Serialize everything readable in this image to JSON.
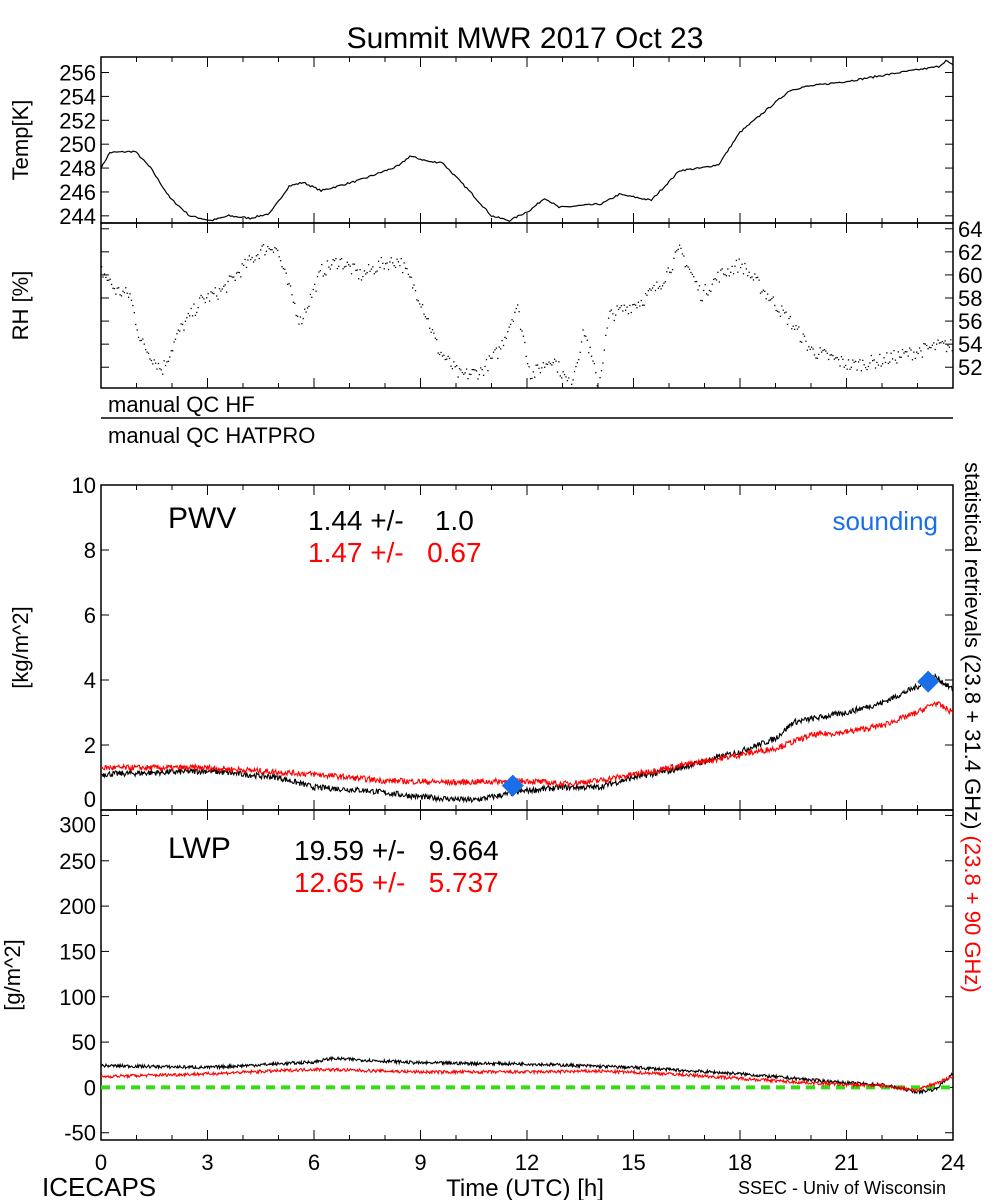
{
  "title": "Summit MWR 2017 Oct 23",
  "footer": {
    "left": "ICECAPS",
    "center": "Time (UTC) [h]",
    "right": "SSEC - Univ of Wisconsin"
  },
  "qc": {
    "hf": "manual QC HF",
    "hatpro": "manual QC HATPRO"
  },
  "right_label": {
    "black": "statistical retrievals (23.8 + 31.4 GHz)",
    "red": "(23.8 + 90 GHz)"
  },
  "colors": {
    "series_black": "#000000",
    "series_red": "#ff0000",
    "sounding": "#1a6fe8",
    "zero_line": "#33dd11"
  },
  "chart_data": [
    {
      "type": "line",
      "ylabel": "Temp[K]",
      "ylim": [
        243.4,
        257.3
      ],
      "xlim": [
        0,
        24
      ],
      "yticks": [
        244,
        246,
        248,
        250,
        252,
        254,
        256
      ],
      "yaxis_side": "left",
      "series": [
        {
          "color": "#000000",
          "x": [
            0,
            0.25,
            0.96,
            1.4,
            1.94,
            2.5,
            3.1,
            3.6,
            4.2,
            4.76,
            5.3,
            5.7,
            6.2,
            7.3,
            8.4,
            8.7,
            9.3,
            9.6,
            10.4,
            11,
            11.5,
            12.1,
            12.5,
            12.9,
            14.1,
            14.6,
            15.5,
            16.3,
            16.9,
            17.4,
            18,
            18.6,
            19.4,
            19.8,
            21.1,
            22.5,
            23.6,
            23.8,
            24
          ],
          "y": [
            248,
            249.3,
            249.4,
            248,
            245.5,
            244,
            243.6,
            244,
            243.8,
            244.2,
            246.5,
            246.8,
            246.1,
            247,
            248.2,
            249,
            248.5,
            248.5,
            246,
            244,
            243.6,
            244.5,
            245.5,
            244.7,
            245,
            245.8,
            245.3,
            247.8,
            248,
            248.3,
            251,
            252.5,
            254.5,
            254.8,
            255.3,
            256,
            256.5,
            257,
            256.6
          ]
        }
      ]
    },
    {
      "type": "scatter",
      "ylabel": "RH [%]",
      "ylim": [
        50.2,
        64.5
      ],
      "xlim": [
        0,
        24
      ],
      "yticks": [
        52,
        54,
        56,
        58,
        60,
        62,
        64
      ],
      "yaxis_side": "right",
      "series": [
        {
          "color": "#000000",
          "x": [
            0,
            0.4,
            0.8,
            1.1,
            1.7,
            2.2,
            2.8,
            3.4,
            3.9,
            4.5,
            4.9,
            5.3,
            5.6,
            6.2,
            6.7,
            7.3,
            7.9,
            8.4,
            9,
            9.5,
            10.1,
            10.7,
            11.2,
            11.7,
            12.1,
            12.7,
            13.2,
            13.6,
            14,
            14.3,
            15.2,
            15.7,
            16.3,
            16.9,
            17.4,
            18,
            18.9,
            19.4,
            20,
            21.1,
            21.9,
            23.1,
            23.6
          ],
          "y": [
            60.4,
            58.7,
            58.3,
            54.3,
            51.8,
            55.2,
            57.8,
            58.7,
            60.4,
            62.2,
            62.6,
            58.7,
            56,
            60.4,
            61.3,
            60,
            61,
            61.3,
            57.8,
            53.5,
            51.3,
            51.7,
            53.5,
            57.4,
            51.3,
            52.9,
            50.4,
            55.2,
            50.4,
            56.5,
            57.8,
            59.1,
            62.2,
            58.3,
            60,
            61,
            57.8,
            56,
            53.5,
            52.2,
            52.6,
            53.5,
            53.9
          ]
        }
      ]
    },
    {
      "type": "line",
      "ylabel": "[kg/m^2]",
      "ylim": [
        0,
        10
      ],
      "xlim": [
        0,
        24
      ],
      "yticks": [
        0,
        2,
        4,
        6,
        8,
        10
      ],
      "yaxis_side": "left",
      "annotations": {
        "label": "PWV",
        "black_stat": "1.44 +/-    1.0",
        "red_stat": "1.47 +/-   0.67",
        "sounding_label": "sounding"
      },
      "series": [
        {
          "color": "#000000",
          "x": [
            0,
            3,
            5,
            6,
            7.5,
            9,
            10.5,
            12,
            13,
            14,
            15,
            16,
            17,
            18,
            19,
            19.5,
            20,
            21,
            22,
            23,
            23.5,
            24
          ],
          "y": [
            1.1,
            1.2,
            1.0,
            0.7,
            0.6,
            0.4,
            0.3,
            0.6,
            0.7,
            0.7,
            1.0,
            1.2,
            1.5,
            1.8,
            2.2,
            2.7,
            2.8,
            3.0,
            3.3,
            3.8,
            4.1,
            3.7
          ]
        },
        {
          "color": "#ff0000",
          "x": [
            0,
            3,
            6,
            8,
            10,
            12,
            13,
            14,
            15,
            16,
            17,
            18,
            19,
            20,
            21,
            22,
            23,
            23.5,
            24
          ],
          "y": [
            1.3,
            1.3,
            1.1,
            0.9,
            0.85,
            0.9,
            0.8,
            0.9,
            1.1,
            1.3,
            1.5,
            1.7,
            1.9,
            2.3,
            2.4,
            2.6,
            3.0,
            3.3,
            3.0
          ]
        }
      ],
      "sounding": {
        "color": "#1a6fe8",
        "x": [
          11.6,
          23.3
        ],
        "y": [
          0.75,
          3.95
        ]
      }
    },
    {
      "type": "line",
      "ylabel": "[g/m^2]",
      "ylim": [
        -58,
        306
      ],
      "xlim": [
        0,
        24
      ],
      "yticks": [
        -50,
        0,
        50,
        100,
        150,
        200,
        250,
        300
      ],
      "yaxis_side": "left",
      "xlabel": "Time (UTC) [h]",
      "xticks": [
        0,
        3,
        6,
        9,
        12,
        15,
        18,
        21,
        24
      ],
      "annotations": {
        "label": "LWP",
        "black_stat": "19.59 +/-   9.664",
        "red_stat": "12.65 +/-   5.737"
      },
      "series": [
        {
          "color": "#000000",
          "x": [
            0,
            3,
            6,
            6.5,
            9,
            12,
            15,
            18,
            19.5,
            21,
            22,
            23,
            23.5,
            24
          ],
          "y": [
            24,
            22,
            28,
            32,
            27,
            26,
            22,
            15,
            10,
            5,
            3,
            -5,
            -2,
            15
          ]
        },
        {
          "color": "#ff0000",
          "x": [
            0,
            3,
            6,
            9,
            12,
            14,
            16,
            18,
            19.5,
            21,
            22,
            23,
            24
          ],
          "y": [
            12,
            15,
            20,
            17,
            17,
            18,
            15,
            10,
            6,
            3,
            2,
            -3,
            12
          ]
        }
      ],
      "reference_line": {
        "y": 0,
        "color": "#33dd11",
        "style": "dashed"
      }
    }
  ]
}
